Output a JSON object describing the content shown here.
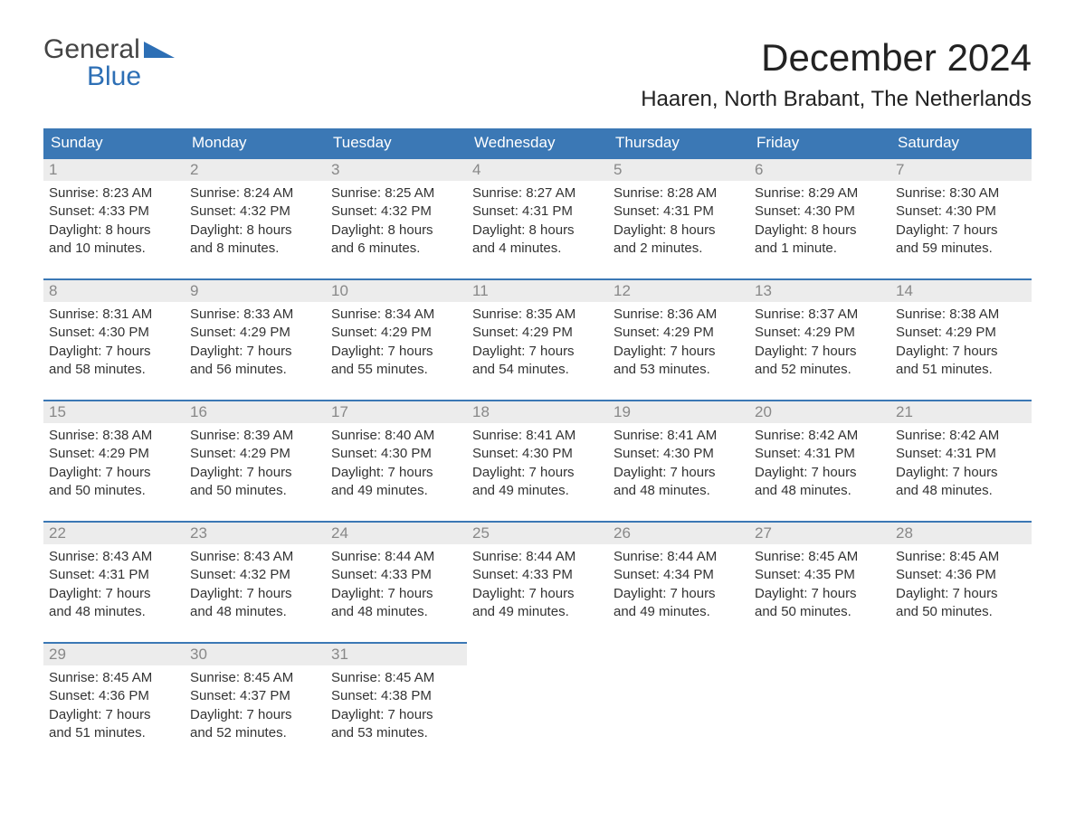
{
  "logo": {
    "general": "General",
    "blue": "Blue"
  },
  "title": "December 2024",
  "location": "Haaren, North Brabant, The Netherlands",
  "colors": {
    "header_bg": "#3b78b5",
    "header_text": "#ffffff",
    "daynum_bg": "#ececec",
    "daynum_border": "#3b78b5",
    "daynum_text": "#888888",
    "body_text": "#333333",
    "logo_general": "#444444",
    "logo_blue": "#2d6fb5",
    "background": "#ffffff"
  },
  "day_headers": [
    "Sunday",
    "Monday",
    "Tuesday",
    "Wednesday",
    "Thursday",
    "Friday",
    "Saturday"
  ],
  "weeks": [
    [
      {
        "n": "1",
        "sunrise": "Sunrise: 8:23 AM",
        "sunset": "Sunset: 4:33 PM",
        "d1": "Daylight: 8 hours",
        "d2": "and 10 minutes."
      },
      {
        "n": "2",
        "sunrise": "Sunrise: 8:24 AM",
        "sunset": "Sunset: 4:32 PM",
        "d1": "Daylight: 8 hours",
        "d2": "and 8 minutes."
      },
      {
        "n": "3",
        "sunrise": "Sunrise: 8:25 AM",
        "sunset": "Sunset: 4:32 PM",
        "d1": "Daylight: 8 hours",
        "d2": "and 6 minutes."
      },
      {
        "n": "4",
        "sunrise": "Sunrise: 8:27 AM",
        "sunset": "Sunset: 4:31 PM",
        "d1": "Daylight: 8 hours",
        "d2": "and 4 minutes."
      },
      {
        "n": "5",
        "sunrise": "Sunrise: 8:28 AM",
        "sunset": "Sunset: 4:31 PM",
        "d1": "Daylight: 8 hours",
        "d2": "and 2 minutes."
      },
      {
        "n": "6",
        "sunrise": "Sunrise: 8:29 AM",
        "sunset": "Sunset: 4:30 PM",
        "d1": "Daylight: 8 hours",
        "d2": "and 1 minute."
      },
      {
        "n": "7",
        "sunrise": "Sunrise: 8:30 AM",
        "sunset": "Sunset: 4:30 PM",
        "d1": "Daylight: 7 hours",
        "d2": "and 59 minutes."
      }
    ],
    [
      {
        "n": "8",
        "sunrise": "Sunrise: 8:31 AM",
        "sunset": "Sunset: 4:30 PM",
        "d1": "Daylight: 7 hours",
        "d2": "and 58 minutes."
      },
      {
        "n": "9",
        "sunrise": "Sunrise: 8:33 AM",
        "sunset": "Sunset: 4:29 PM",
        "d1": "Daylight: 7 hours",
        "d2": "and 56 minutes."
      },
      {
        "n": "10",
        "sunrise": "Sunrise: 8:34 AM",
        "sunset": "Sunset: 4:29 PM",
        "d1": "Daylight: 7 hours",
        "d2": "and 55 minutes."
      },
      {
        "n": "11",
        "sunrise": "Sunrise: 8:35 AM",
        "sunset": "Sunset: 4:29 PM",
        "d1": "Daylight: 7 hours",
        "d2": "and 54 minutes."
      },
      {
        "n": "12",
        "sunrise": "Sunrise: 8:36 AM",
        "sunset": "Sunset: 4:29 PM",
        "d1": "Daylight: 7 hours",
        "d2": "and 53 minutes."
      },
      {
        "n": "13",
        "sunrise": "Sunrise: 8:37 AM",
        "sunset": "Sunset: 4:29 PM",
        "d1": "Daylight: 7 hours",
        "d2": "and 52 minutes."
      },
      {
        "n": "14",
        "sunrise": "Sunrise: 8:38 AM",
        "sunset": "Sunset: 4:29 PM",
        "d1": "Daylight: 7 hours",
        "d2": "and 51 minutes."
      }
    ],
    [
      {
        "n": "15",
        "sunrise": "Sunrise: 8:38 AM",
        "sunset": "Sunset: 4:29 PM",
        "d1": "Daylight: 7 hours",
        "d2": "and 50 minutes."
      },
      {
        "n": "16",
        "sunrise": "Sunrise: 8:39 AM",
        "sunset": "Sunset: 4:29 PM",
        "d1": "Daylight: 7 hours",
        "d2": "and 50 minutes."
      },
      {
        "n": "17",
        "sunrise": "Sunrise: 8:40 AM",
        "sunset": "Sunset: 4:30 PM",
        "d1": "Daylight: 7 hours",
        "d2": "and 49 minutes."
      },
      {
        "n": "18",
        "sunrise": "Sunrise: 8:41 AM",
        "sunset": "Sunset: 4:30 PM",
        "d1": "Daylight: 7 hours",
        "d2": "and 49 minutes."
      },
      {
        "n": "19",
        "sunrise": "Sunrise: 8:41 AM",
        "sunset": "Sunset: 4:30 PM",
        "d1": "Daylight: 7 hours",
        "d2": "and 48 minutes."
      },
      {
        "n": "20",
        "sunrise": "Sunrise: 8:42 AM",
        "sunset": "Sunset: 4:31 PM",
        "d1": "Daylight: 7 hours",
        "d2": "and 48 minutes."
      },
      {
        "n": "21",
        "sunrise": "Sunrise: 8:42 AM",
        "sunset": "Sunset: 4:31 PM",
        "d1": "Daylight: 7 hours",
        "d2": "and 48 minutes."
      }
    ],
    [
      {
        "n": "22",
        "sunrise": "Sunrise: 8:43 AM",
        "sunset": "Sunset: 4:31 PM",
        "d1": "Daylight: 7 hours",
        "d2": "and 48 minutes."
      },
      {
        "n": "23",
        "sunrise": "Sunrise: 8:43 AM",
        "sunset": "Sunset: 4:32 PM",
        "d1": "Daylight: 7 hours",
        "d2": "and 48 minutes."
      },
      {
        "n": "24",
        "sunrise": "Sunrise: 8:44 AM",
        "sunset": "Sunset: 4:33 PM",
        "d1": "Daylight: 7 hours",
        "d2": "and 48 minutes."
      },
      {
        "n": "25",
        "sunrise": "Sunrise: 8:44 AM",
        "sunset": "Sunset: 4:33 PM",
        "d1": "Daylight: 7 hours",
        "d2": "and 49 minutes."
      },
      {
        "n": "26",
        "sunrise": "Sunrise: 8:44 AM",
        "sunset": "Sunset: 4:34 PM",
        "d1": "Daylight: 7 hours",
        "d2": "and 49 minutes."
      },
      {
        "n": "27",
        "sunrise": "Sunrise: 8:45 AM",
        "sunset": "Sunset: 4:35 PM",
        "d1": "Daylight: 7 hours",
        "d2": "and 50 minutes."
      },
      {
        "n": "28",
        "sunrise": "Sunrise: 8:45 AM",
        "sunset": "Sunset: 4:36 PM",
        "d1": "Daylight: 7 hours",
        "d2": "and 50 minutes."
      }
    ],
    [
      {
        "n": "29",
        "sunrise": "Sunrise: 8:45 AM",
        "sunset": "Sunset: 4:36 PM",
        "d1": "Daylight: 7 hours",
        "d2": "and 51 minutes."
      },
      {
        "n": "30",
        "sunrise": "Sunrise: 8:45 AM",
        "sunset": "Sunset: 4:37 PM",
        "d1": "Daylight: 7 hours",
        "d2": "and 52 minutes."
      },
      {
        "n": "31",
        "sunrise": "Sunrise: 8:45 AM",
        "sunset": "Sunset: 4:38 PM",
        "d1": "Daylight: 7 hours",
        "d2": "and 53 minutes."
      },
      null,
      null,
      null,
      null
    ]
  ]
}
